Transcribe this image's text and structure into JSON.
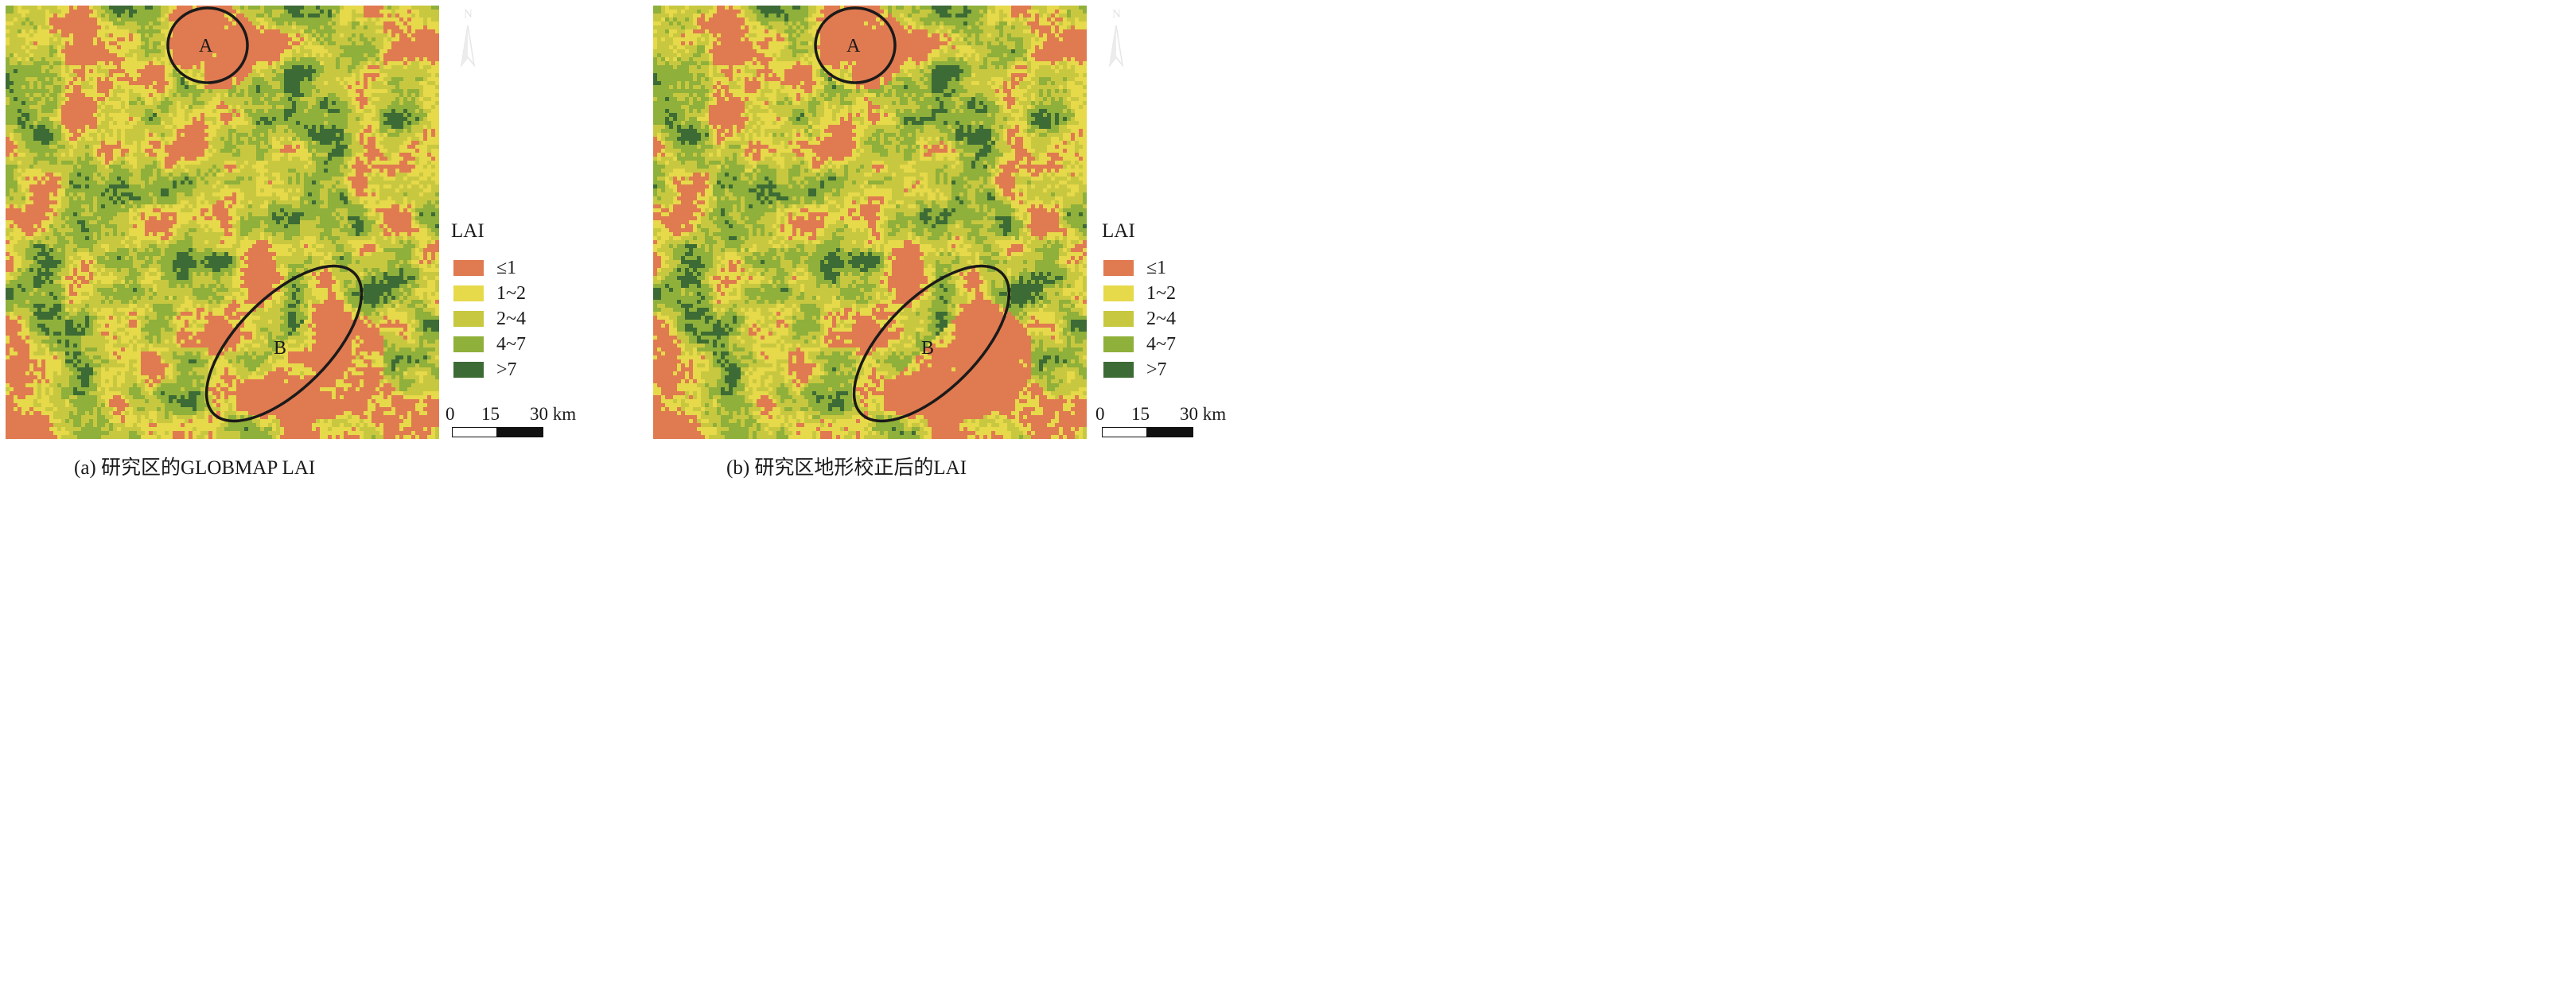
{
  "panels": [
    {
      "id": "a",
      "caption": "(a) 研究区的GLOBMAP LAI",
      "region_labels": [
        "A",
        "B"
      ],
      "north_label": "N"
    },
    {
      "id": "b",
      "caption": "(b) 研究区地形校正后的LAI",
      "region_labels": [
        "A",
        "B"
      ],
      "north_label": "N"
    }
  ],
  "legend": {
    "title": "LAI",
    "classes": [
      {
        "label": "≤1",
        "color": "#e07a50"
      },
      {
        "label": "1~2",
        "color": "#e6d94a"
      },
      {
        "label": "2~4",
        "color": "#c8c840"
      },
      {
        "label": "4~7",
        "color": "#8fb03a"
      },
      {
        "label": ">7",
        "color": "#3d6b35"
      }
    ]
  },
  "scalebar": {
    "ticks": [
      "0",
      "15",
      "30 km"
    ]
  }
}
